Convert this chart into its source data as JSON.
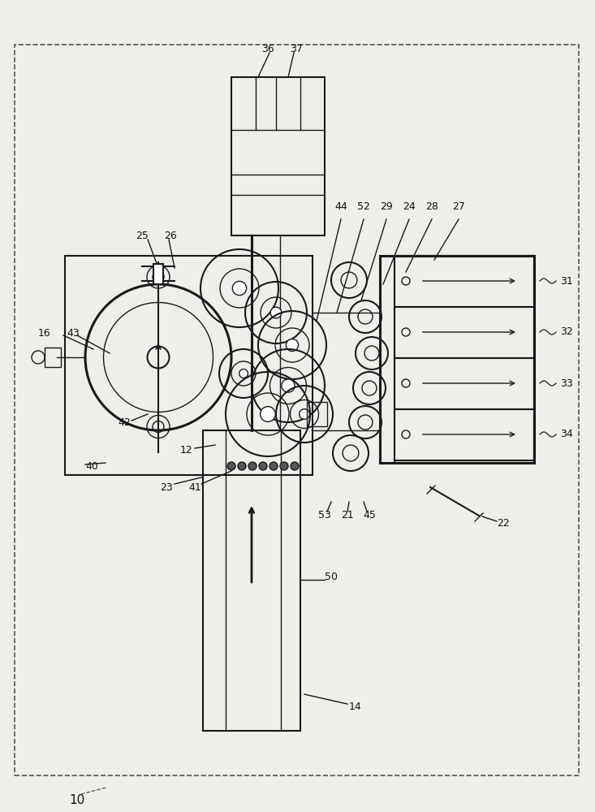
{
  "bg_color": "#f0eeea",
  "line_color": "#1a1a1a",
  "figsize": [
    7.33,
    10.0
  ],
  "dpi": 100
}
